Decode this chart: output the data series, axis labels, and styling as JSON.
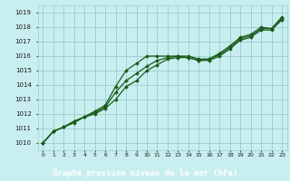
{
  "title": "Graphe pression niveau de la mer (hPa)",
  "bg_color": "#c8eef0",
  "plot_bg": "#c8eef0",
  "grid_color": "#99cccc",
  "line_color": "#1a5c1a",
  "marker_color": "#1a5c1a",
  "label_bg": "#2d6b2d",
  "label_fg": "#ffffff",
  "x_labels": [
    "0",
    "1",
    "2",
    "3",
    "4",
    "5",
    "6",
    "7",
    "8",
    "9",
    "10",
    "11",
    "12",
    "13",
    "14",
    "15",
    "16",
    "17",
    "18",
    "19",
    "20",
    "21",
    "22",
    "23"
  ],
  "ylim": [
    1009.5,
    1019.5
  ],
  "yticks": [
    1010,
    1011,
    1012,
    1013,
    1014,
    1015,
    1016,
    1017,
    1018,
    1019
  ],
  "series1": [
    1010.0,
    1010.8,
    1011.1,
    1011.4,
    1011.8,
    1012.2,
    1012.5,
    1013.9,
    1014.3,
    1014.8,
    1015.5,
    1015.9,
    1016.0,
    1016.0,
    1015.9,
    1015.7,
    1015.8,
    1016.1,
    1016.6,
    1017.3,
    1017.5,
    1018.0,
    1017.9,
    1018.7
  ],
  "series2": [
    1010.0,
    1010.8,
    1011.1,
    1011.4,
    1011.8,
    1012.2,
    1012.5,
    1013.0,
    1013.9,
    1014.3,
    1015.0,
    1015.5,
    1015.8,
    1015.9,
    1015.9,
    1015.7,
    1015.8,
    1016.1,
    1016.6,
    1017.3,
    1017.5,
    1018.0,
    1017.9,
    1018.7
  ],
  "series3": [
    1010.0,
    1010.8,
    1011.1,
    1011.4,
    1011.8,
    1012.2,
    1012.5,
    1013.0,
    1014.3,
    1014.8,
    1015.3,
    1015.9,
    1016.0,
    1016.0,
    1016.0,
    1015.7,
    1015.8,
    1016.2,
    1016.7,
    1017.4,
    1017.7,
    1018.1,
    1018.1,
    1018.7
  ],
  "series_outlier": [
    1010.0,
    1010.8,
    1011.1,
    1011.4,
    1011.8,
    1012.2,
    1012.5,
    1013.9,
    1015.0,
    1015.5,
    1016.0,
    1016.0,
    1016.0,
    1016.0,
    1016.0,
    1015.9,
    1016.0,
    1016.2,
    1016.7,
    1017.4,
    1017.7,
    1018.1,
    1018.1,
    1018.7
  ]
}
